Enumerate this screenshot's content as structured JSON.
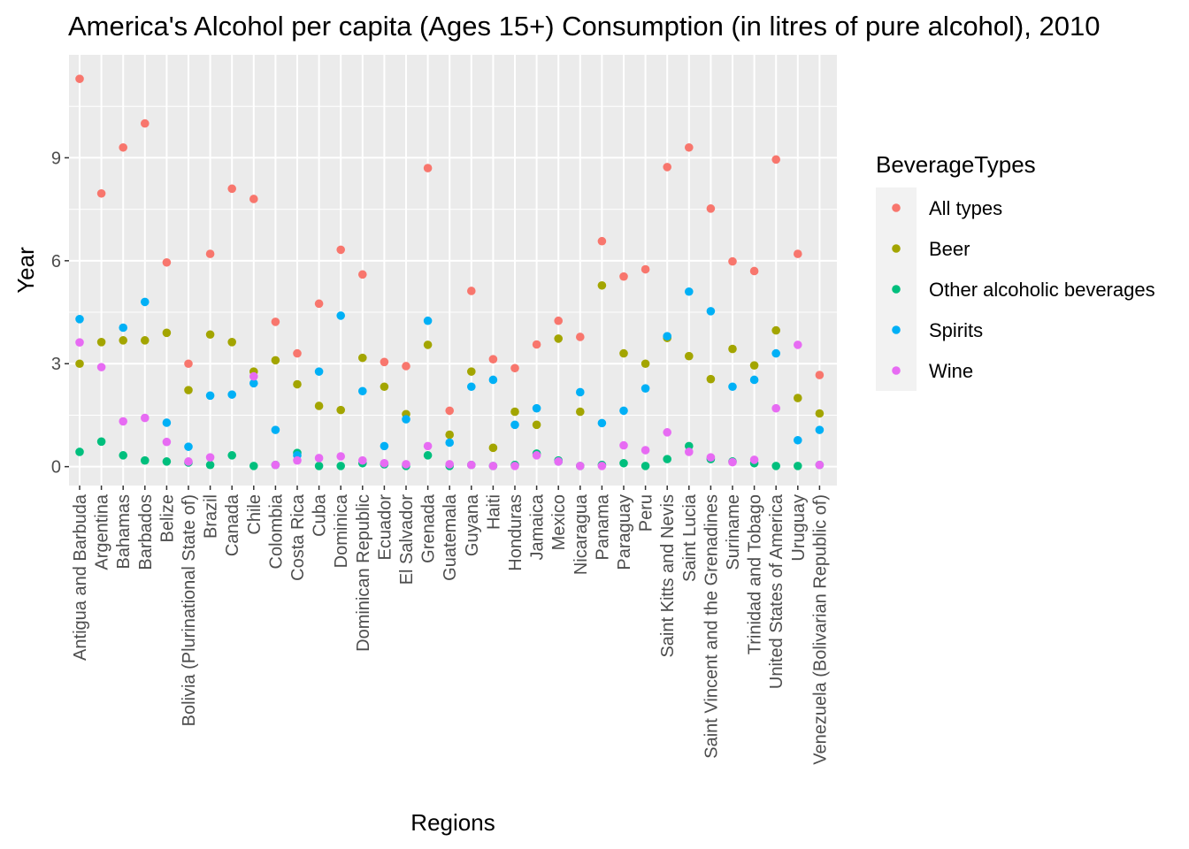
{
  "chart_data": {
    "type": "scatter",
    "title": "America's Alcohol per capita (Ages 15+) Consumption (in litres of pure alcohol), 2010",
    "xlabel": "Regions",
    "ylabel": "Year",
    "ylim": [
      -0.55,
      12.0
    ],
    "yticks": [
      0,
      3,
      6,
      9
    ],
    "grid": true,
    "legend": {
      "title": "BeverageTypes",
      "position": "right"
    },
    "categories": [
      "Antigua and Barbuda",
      "Argentina",
      "Bahamas",
      "Barbados",
      "Belize",
      "Bolivia (Plurinational State of)",
      "Brazil",
      "Canada",
      "Chile",
      "Colombia",
      "Costa Rica",
      "Cuba",
      "Dominica",
      "Dominican Republic",
      "Ecuador",
      "El Salvador",
      "Grenada",
      "Guatemala",
      "Guyana",
      "Haiti",
      "Honduras",
      "Jamaica",
      "Mexico",
      "Nicaragua",
      "Panama",
      "Paraguay",
      "Peru",
      "Saint Kitts and Nevis",
      "Saint Lucia",
      "Saint Vincent and the Grenadines",
      "Suriname",
      "Trinidad and Tobago",
      "United States of America",
      "Uruguay",
      "Venezuela (Bolivarian Republic of)"
    ],
    "series": [
      {
        "name": "All types",
        "color": "#F8766D",
        "values": [
          11.3,
          7.96,
          9.3,
          10.0,
          5.95,
          3.0,
          6.2,
          8.1,
          7.8,
          4.22,
          3.3,
          4.75,
          6.32,
          5.6,
          3.05,
          2.93,
          8.7,
          1.63,
          5.12,
          3.13,
          2.87,
          3.56,
          4.25,
          3.78,
          6.57,
          5.54,
          5.75,
          8.73,
          9.3,
          7.52,
          5.98,
          5.7,
          8.95,
          6.2,
          2.67
        ]
      },
      {
        "name": "Beer",
        "color": "#A3A500",
        "values": [
          3.0,
          3.63,
          3.68,
          3.68,
          3.9,
          2.23,
          3.85,
          3.63,
          2.77,
          3.1,
          2.4,
          1.77,
          1.65,
          3.17,
          2.33,
          1.53,
          3.55,
          0.93,
          2.77,
          0.55,
          1.6,
          1.22,
          3.73,
          1.6,
          5.28,
          3.3,
          3.0,
          3.75,
          3.22,
          2.55,
          3.43,
          2.95,
          3.97,
          2.0,
          1.55
        ]
      },
      {
        "name": "Other alcoholic beverages",
        "color": "#00BF7D",
        "values": [
          0.43,
          0.73,
          0.33,
          0.18,
          0.15,
          0.12,
          0.05,
          0.33,
          0.02,
          0.05,
          0.4,
          0.02,
          0.02,
          0.1,
          0.07,
          0.02,
          0.33,
          0.02,
          0.05,
          0.02,
          0.05,
          0.38,
          0.18,
          0.02,
          0.05,
          0.1,
          0.02,
          0.22,
          0.6,
          0.22,
          0.15,
          0.1,
          0.02,
          0.02,
          0.05
        ]
      },
      {
        "name": "Spirits",
        "color": "#00B0F6",
        "values": [
          4.3,
          null,
          4.05,
          4.8,
          1.28,
          0.58,
          2.07,
          2.1,
          2.43,
          1.07,
          0.33,
          2.77,
          4.4,
          2.2,
          0.6,
          1.38,
          4.25,
          0.7,
          2.33,
          2.53,
          1.22,
          1.7,
          0.15,
          2.17,
          1.27,
          1.63,
          2.28,
          3.8,
          5.1,
          4.53,
          2.33,
          2.53,
          3.3,
          0.77,
          1.07
        ]
      },
      {
        "name": "Wine",
        "color": "#E76BF3",
        "values": [
          3.62,
          2.9,
          1.32,
          1.42,
          0.72,
          0.15,
          0.27,
          null,
          2.63,
          0.05,
          0.18,
          0.25,
          0.3,
          0.18,
          0.1,
          0.07,
          0.6,
          0.07,
          0.05,
          0.02,
          0.02,
          0.33,
          0.15,
          0.02,
          0.02,
          0.62,
          0.48,
          1.0,
          0.43,
          0.27,
          0.13,
          0.2,
          1.7,
          3.55,
          0.05
        ]
      }
    ]
  }
}
